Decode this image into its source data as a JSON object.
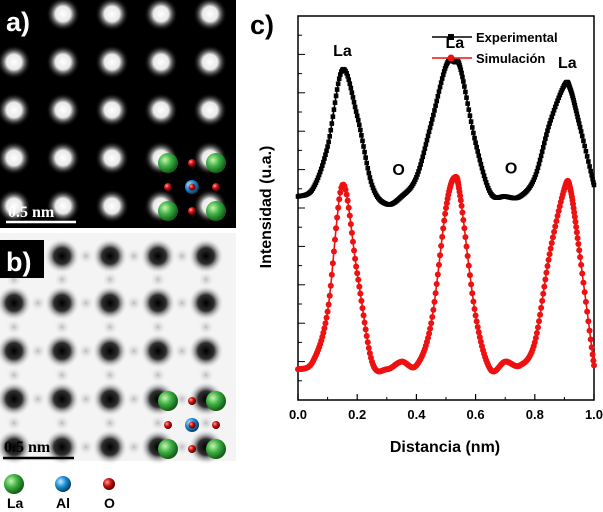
{
  "panels": {
    "a": {
      "label": "a)",
      "scale_bar": "0.5 nm"
    },
    "b": {
      "label": "b)",
      "scale_bar": "0.5 nm"
    },
    "c": {
      "label": "c)"
    }
  },
  "legend_atoms": [
    {
      "symbol": "La",
      "color": "#3cb043"
    },
    {
      "symbol": "Al",
      "color": "#1e90d8"
    },
    {
      "symbol": "O",
      "color": "#cc1111"
    }
  ],
  "chart_data": {
    "type": "line",
    "xlabel": "Distancia (nm)",
    "ylabel": "Intensidad (u.a.)",
    "xlim": [
      0.0,
      1.0
    ],
    "xticks": [
      "0.0",
      "0.2",
      "0.4",
      "0.6",
      "0.8",
      "1.0"
    ],
    "ylim": [
      0,
      1
    ],
    "grid": false,
    "legend_position": "top-right",
    "series": [
      {
        "name": "Experimental",
        "color": "#000000",
        "marker": "square",
        "x": [
          0.0,
          0.05,
          0.1,
          0.15,
          0.2,
          0.25,
          0.3,
          0.35,
          0.4,
          0.45,
          0.5,
          0.53,
          0.55,
          0.6,
          0.65,
          0.7,
          0.75,
          0.8,
          0.85,
          0.9,
          0.92,
          0.95,
          1.0
        ],
        "y": [
          0.53,
          0.55,
          0.66,
          0.86,
          0.74,
          0.56,
          0.51,
          0.53,
          0.58,
          0.72,
          0.87,
          0.88,
          0.86,
          0.67,
          0.54,
          0.53,
          0.53,
          0.58,
          0.72,
          0.82,
          0.81,
          0.72,
          0.56
        ]
      },
      {
        "name": "Simulación",
        "color": "#ee1111",
        "marker": "circle",
        "x": [
          0.0,
          0.05,
          0.1,
          0.15,
          0.2,
          0.25,
          0.3,
          0.35,
          0.4,
          0.45,
          0.5,
          0.53,
          0.55,
          0.6,
          0.65,
          0.7,
          0.75,
          0.8,
          0.85,
          0.9,
          0.92,
          0.95,
          1.0
        ],
        "y": [
          0.08,
          0.1,
          0.23,
          0.56,
          0.33,
          0.1,
          0.08,
          0.1,
          0.09,
          0.2,
          0.5,
          0.58,
          0.52,
          0.22,
          0.08,
          0.1,
          0.09,
          0.15,
          0.38,
          0.55,
          0.55,
          0.39,
          0.09
        ]
      }
    ],
    "annotations": [
      {
        "text": "La",
        "x": 0.15
      },
      {
        "text": "O",
        "x": 0.34
      },
      {
        "text": "La",
        "x": 0.53
      },
      {
        "text": "O",
        "x": 0.72
      },
      {
        "text": "La",
        "x": 0.91
      }
    ]
  }
}
